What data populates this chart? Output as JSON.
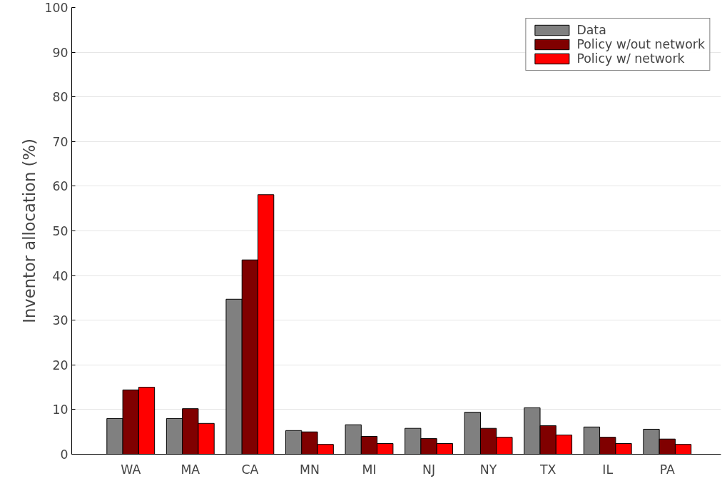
{
  "chart_data": {
    "type": "bar",
    "ylabel": "Inventor allocation (%)",
    "categories": [
      "WA",
      "MA",
      "CA",
      "MN",
      "MI",
      "NJ",
      "NY",
      "TX",
      "IL",
      "PA"
    ],
    "series": [
      {
        "name": "Data",
        "color": "#808080",
        "values": [
          8.0,
          8.0,
          34.7,
          5.3,
          6.6,
          5.8,
          9.4,
          10.4,
          6.1,
          5.6
        ]
      },
      {
        "name": "Policy w/out network",
        "color": "#800000",
        "values": [
          14.4,
          10.2,
          43.5,
          5.0,
          4.0,
          3.5,
          5.8,
          6.4,
          3.8,
          3.4
        ]
      },
      {
        "name": "Policy w/ network",
        "color": "#ff0000",
        "values": [
          15.0,
          6.9,
          58.1,
          2.2,
          2.4,
          2.4,
          3.8,
          4.3,
          2.4,
          2.2
        ]
      }
    ],
    "ylim": [
      0,
      100
    ],
    "yticks": [
      0,
      10,
      20,
      30,
      40,
      50,
      60,
      70,
      80,
      90,
      100
    ],
    "grid": "y",
    "legend": "top right"
  }
}
